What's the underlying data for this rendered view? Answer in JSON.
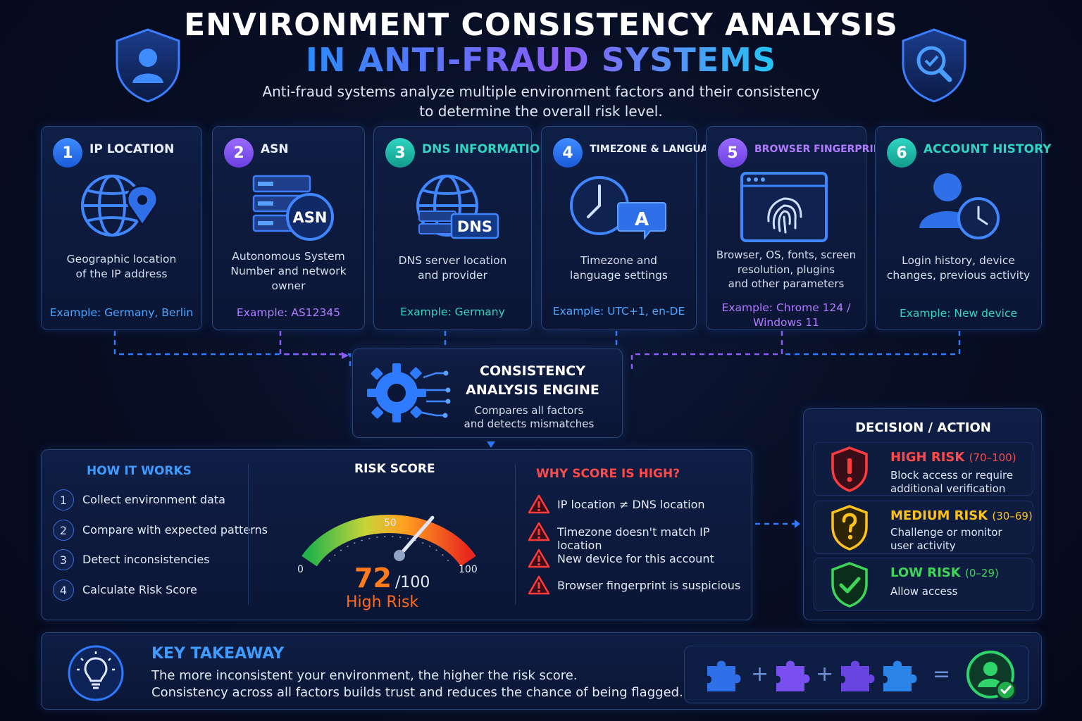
{
  "header": {
    "title_line1": "ENVIRONMENT CONSISTENCY ANALYSIS",
    "title_line2": "IN ANTI-FRAUD SYSTEMS",
    "subtitle_line1": "Anti-fraud systems analyze multiple environment factors and their consistency",
    "subtitle_line2": "to determine the overall risk level."
  },
  "factors": [
    {
      "num": "1",
      "title": "IP LOCATION",
      "desc_line1": "Geographic location",
      "desc_line2": "of the IP address",
      "example": "Example: Germany, Berlin",
      "icon": "globe-pin-icon",
      "color": "#2f7bff"
    },
    {
      "num": "2",
      "title": "ASN",
      "desc_line1": "Autonomous System",
      "desc_line2": "Number and network",
      "desc_line3": "owner",
      "example": "Example: AS12345",
      "icon": "server-asn-icon",
      "icon_text": "ASN",
      "color": "#8a5cf6"
    },
    {
      "num": "3",
      "title": "DNS INFORMATION",
      "desc_line1": "DNS server location",
      "desc_line2": "and provider",
      "example": "Example: Germany",
      "icon": "globe-dns-icon",
      "icon_text": "DNS",
      "color": "#1fb7a6"
    },
    {
      "num": "4",
      "title": "TIMEZONE & LANGUAGE",
      "desc_line1": "Timezone and",
      "desc_line2": "language settings",
      "example": "Example: UTC+1, en-DE",
      "icon": "clock-language-icon",
      "icon_text": "A",
      "color": "#2f7bff"
    },
    {
      "num": "5",
      "title": "BROWSER FINGERPRINT",
      "desc_line1": "Browser, OS, fonts, screen",
      "desc_line2": "resolution, plugins",
      "desc_line3": "and other parameters",
      "example_line1": "Example: Chrome 124 /",
      "example_line2": "Windows 11",
      "icon": "browser-fingerprint-icon",
      "color": "#8a5cf6"
    },
    {
      "num": "6",
      "title": "ACCOUNT HISTORY",
      "desc_line1": "Login history, device",
      "desc_line2": "changes, previous activity",
      "example": "Example: New device",
      "icon": "user-clock-icon",
      "color": "#1fb7a6"
    }
  ],
  "engine": {
    "title_line1": "CONSISTENCY",
    "title_line2": "ANALYSIS ENGINE",
    "desc_line1": "Compares all factors",
    "desc_line2": "and detects mismatches",
    "icon": "gear-circuit-icon"
  },
  "how_it_works": {
    "title": "HOW IT WORKS",
    "steps": [
      {
        "num": "1",
        "label": "Collect environment data"
      },
      {
        "num": "2",
        "label": "Compare with expected patterns"
      },
      {
        "num": "3",
        "label": "Detect inconsistencies"
      },
      {
        "num": "4",
        "label": "Calculate Risk Score"
      }
    ]
  },
  "risk_score": {
    "title": "RISK SCORE",
    "value": 72,
    "value_label": "72",
    "max_label": "/100",
    "min": 0,
    "max": 100,
    "tick_min": "0",
    "tick_mid": "50",
    "tick_max": "100",
    "level": "High Risk"
  },
  "why_high": {
    "title": "WHY SCORE IS HIGH?",
    "reasons": [
      "IP location ≠ DNS location",
      "Timezone doesn't match IP location",
      "New device for this account",
      "Browser fingerprint is suspicious"
    ],
    "icon": "warning-triangle-icon"
  },
  "decision": {
    "title": "DECISION / ACTION",
    "items": [
      {
        "name": "HIGH RISK",
        "range": "(70–100)",
        "desc_line1": "Block access or require",
        "desc_line2": "additional verification",
        "color": "#ff4a4a",
        "icon": "shield-exclamation-icon"
      },
      {
        "name": "MEDIUM RISK",
        "range": "(30–69)",
        "desc_line1": "Challenge or monitor",
        "desc_line2": "user activity",
        "color": "#ffc21a",
        "icon": "shield-question-icon"
      },
      {
        "name": "LOW RISK",
        "range": "(0–29)",
        "desc_line1": "Allow access",
        "color": "#3ed65a",
        "icon": "shield-check-icon"
      }
    ]
  },
  "takeaway": {
    "title": "KEY TAKEAWAY",
    "line1": "The more inconsistent your environment, the higher the risk score.",
    "line2": "Consistency across all factors builds trust and reduces the chance of being flagged.",
    "icon": "lightbulb-icon",
    "plus": "+",
    "equals": "="
  },
  "colors": {
    "accent_blue": "#2f7bff",
    "accent_purple": "#8a5cf6",
    "accent_teal": "#1fb7a6",
    "risk_orange": "#ff7a1a"
  }
}
